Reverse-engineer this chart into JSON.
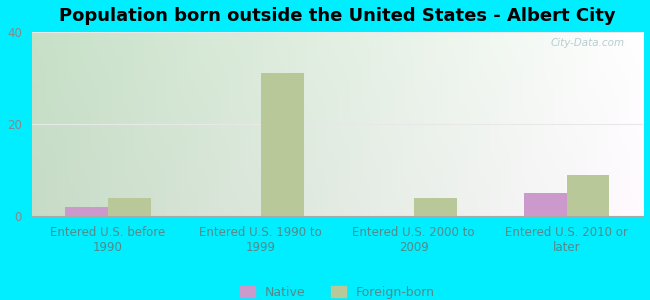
{
  "title": "Population born outside the United States - Albert City",
  "categories": [
    "Entered U.S. before\n1990",
    "Entered U.S. 1990 to\n1999",
    "Entered U.S. 2000 to\n2009",
    "Entered U.S. 2010 or\nlater"
  ],
  "native_values": [
    2,
    0,
    0,
    5
  ],
  "foreign_values": [
    4,
    31,
    4,
    9
  ],
  "native_color": "#cc99cc",
  "foreign_color": "#b8c898",
  "ylim": [
    0,
    40
  ],
  "yticks": [
    0,
    20,
    40
  ],
  "fig_bg_color": "#00eeff",
  "bar_width": 0.28,
  "legend_native": "Native",
  "legend_foreign": "Foreign-born",
  "watermark": "City-Data.com",
  "title_fontsize": 13,
  "tick_fontsize": 8.5,
  "legend_fontsize": 9,
  "xtick_color": "#558888",
  "ytick_color": "#888888",
  "plot_bg_left_color": "#c8dcc8",
  "plot_bg_right_color": "#f0faf0",
  "grid_color": "#e8e8e8"
}
